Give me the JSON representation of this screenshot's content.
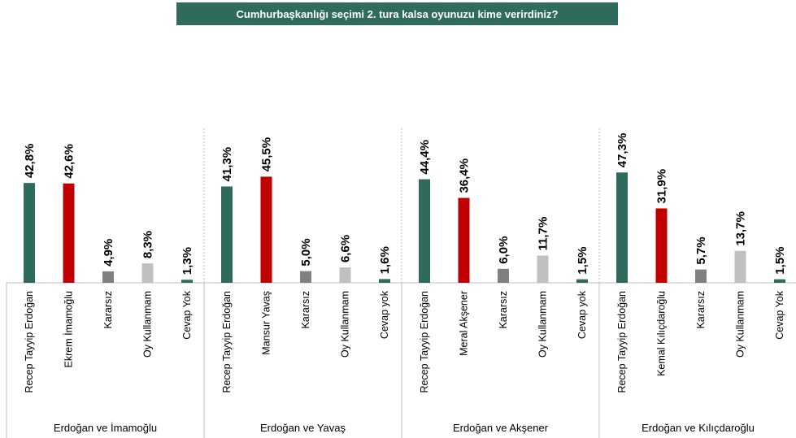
{
  "title": "Cumhurbaşkanlığı seçimi 2. tura kalsa oyunuzu kime verirdiniz?",
  "colors": {
    "green": "#2f6b5c",
    "red": "#c00000",
    "dark_gray": "#808080",
    "light_gray": "#c0c0c0"
  },
  "chart_data": {
    "type": "bar",
    "title": "Cumhurbaşkanlığı seçimi 2. tura kalsa oyunuzu kime verirdiniz?",
    "ylim": [
      0,
      50
    ],
    "grid": false,
    "groups": [
      {
        "name": "Erdoğan ve İmamoğlu",
        "categories": [
          "Recep Tayyip Erdoğan",
          "Ekrem İmamoğlu",
          "Kararsız",
          "Oy Kullanmam",
          "Cevap Yok"
        ],
        "values": [
          42.8,
          42.6,
          4.9,
          8.3,
          1.3
        ],
        "labels": [
          "42,8%",
          "42,6%",
          "4,9%",
          "8,3%",
          "1,3%"
        ],
        "colors": [
          "#2f6b5c",
          "#c00000",
          "#808080",
          "#c0c0c0",
          "#2f6b5c"
        ]
      },
      {
        "name": "Erdoğan ve Yavaş",
        "categories": [
          "Recep Tayyip Erdoğan",
          "Mansur Yavaş",
          "Kararsız",
          "Oy Kullanmam",
          "Cevap yok"
        ],
        "values": [
          41.3,
          45.5,
          5.0,
          6.6,
          1.6
        ],
        "labels": [
          "41,3%",
          "45,5%",
          "5,0%",
          "6,6%",
          "1,6%"
        ],
        "colors": [
          "#2f6b5c",
          "#c00000",
          "#808080",
          "#c0c0c0",
          "#2f6b5c"
        ]
      },
      {
        "name": "Erdoğan ve Akşener",
        "categories": [
          "Recep Tayyip Erdoğan",
          "Meral Akşener",
          "Kararsız",
          "Oy Kullanmam",
          "Cevap yok"
        ],
        "values": [
          44.4,
          36.4,
          6.0,
          11.7,
          1.5
        ],
        "labels": [
          "44,4%",
          "36,4%",
          "6,0%",
          "11,7%",
          "1,5%"
        ],
        "colors": [
          "#2f6b5c",
          "#c00000",
          "#808080",
          "#c0c0c0",
          "#2f6b5c"
        ]
      },
      {
        "name": "Erdoğan ve Kılıçdaroğlu",
        "categories": [
          "Recep Tayyip Erdoğan",
          "Kemal Kılıçdaroğlu",
          "Kararsız",
          "Oy Kullanmam",
          "Cevap Yok"
        ],
        "values": [
          47.3,
          31.9,
          5.7,
          13.7,
          1.5
        ],
        "labels": [
          "47,3%",
          "31,9%",
          "5,7%",
          "13,7%",
          "1,5%"
        ],
        "colors": [
          "#2f6b5c",
          "#c00000",
          "#808080",
          "#c0c0c0",
          "#2f6b5c"
        ]
      }
    ]
  }
}
